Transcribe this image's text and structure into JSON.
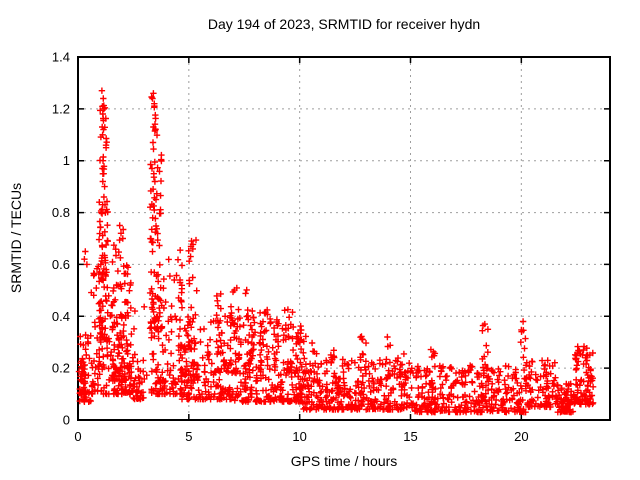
{
  "window": {
    "background": "#ffffff"
  },
  "chart_data": {
    "type": "scatter",
    "title": "Day 194 of 2023, SRMTID for receiver hydn",
    "xlabel": "GPS time / hours",
    "ylabel": "SRMTID / TECUs",
    "xlim": [
      0,
      24
    ],
    "ylim": [
      0,
      1.4
    ],
    "xticks": {
      "values": [
        0,
        5,
        10,
        15,
        20
      ],
      "labels": [
        "0",
        "5",
        "10",
        "15",
        "20"
      ]
    },
    "yticks": {
      "values": [
        0,
        0.2,
        0.4,
        0.6,
        0.8,
        1,
        1.2,
        1.4
      ],
      "labels": [
        "0",
        "0.2",
        "0.4",
        "0.6",
        "0.8",
        "1",
        "1.2",
        "1.4"
      ]
    },
    "grid": {
      "show": true,
      "style": "dotted",
      "color": "#9e9e9e"
    },
    "legend": "none",
    "marker": {
      "symbol": "plus",
      "color": "#ff0000"
    },
    "series_name": "SRMTID",
    "points": [
      [
        1.08,
        1.27
      ],
      [
        1.14,
        1.24
      ],
      [
        1.1,
        1.21
      ],
      [
        1.17,
        1.2
      ],
      [
        1.12,
        1.18
      ],
      [
        1.09,
        1.13
      ],
      [
        1.15,
        1.12
      ],
      [
        1.11,
        1.1
      ],
      [
        1.13,
        1.0
      ],
      [
        1.1,
        0.97
      ],
      [
        1.16,
        0.95
      ],
      [
        1.12,
        0.92
      ],
      [
        1.2,
        0.9
      ],
      [
        1.17,
        0.86
      ],
      [
        1.22,
        0.83
      ],
      [
        1.05,
        0.8
      ],
      [
        3.4,
        1.26
      ],
      [
        3.36,
        1.24
      ],
      [
        3.44,
        1.22
      ],
      [
        3.4,
        1.13
      ],
      [
        3.5,
        1.12
      ],
      [
        3.34,
        0.97
      ],
      [
        3.42,
        0.95
      ],
      [
        3.47,
        0.92
      ],
      [
        3.39,
        0.89
      ],
      [
        3.52,
        0.85
      ],
      [
        3.44,
        0.81
      ],
      [
        3.37,
        0.78
      ],
      [
        0.33,
        0.65
      ],
      [
        0.29,
        0.62
      ],
      [
        0.4,
        0.6
      ],
      [
        5.12,
        0.69
      ],
      [
        5.18,
        0.66
      ],
      [
        5.08,
        0.63
      ],
      [
        1.88,
        0.75
      ],
      [
        1.94,
        0.72
      ],
      [
        2.02,
        0.7
      ],
      [
        18.35,
        0.37
      ],
      [
        20.08,
        0.38
      ],
      [
        13.96,
        0.32
      ],
      [
        12.84,
        0.31
      ],
      [
        23.0,
        0.25
      ],
      [
        22.9,
        0.24
      ]
    ],
    "point_clusters": {
      "description": "Dense scatter regions read from the plot; each cluster is expanded into count pseudo-random points. Values estimated from gridlines.",
      "fields": [
        "x_start",
        "x_end",
        "y_min",
        "y_max",
        "count",
        "low_bias_exponent"
      ],
      "clusters": [
        [
          0.02,
          0.6,
          0.07,
          0.35,
          40,
          2.0
        ],
        [
          0.05,
          0.35,
          0.1,
          0.24,
          25,
          1.5
        ],
        [
          0.6,
          2.4,
          0.1,
          0.6,
          170,
          2.2
        ],
        [
          0.95,
          1.35,
          0.3,
          1.05,
          70,
          1.6
        ],
        [
          1.0,
          1.3,
          1.05,
          1.28,
          12,
          1.0
        ],
        [
          1.55,
          2.25,
          0.15,
          0.76,
          60,
          2.0
        ],
        [
          2.3,
          3.1,
          0.08,
          0.45,
          55,
          2.0
        ],
        [
          3.25,
          3.8,
          0.35,
          1.05,
          65,
          1.6
        ],
        [
          3.3,
          3.6,
          1.05,
          1.26,
          10,
          1.0
        ],
        [
          3.3,
          4.7,
          0.1,
          0.62,
          120,
          2.2
        ],
        [
          4.6,
          5.4,
          0.15,
          0.7,
          60,
          1.8
        ],
        [
          4.6,
          7.0,
          0.08,
          0.4,
          150,
          2.2
        ],
        [
          6.2,
          6.65,
          0.18,
          0.52,
          25,
          1.4
        ],
        [
          6.85,
          7.3,
          0.18,
          0.53,
          30,
          1.4
        ],
        [
          7.55,
          8.0,
          0.18,
          0.52,
          25,
          1.4
        ],
        [
          7.0,
          10.1,
          0.07,
          0.42,
          230,
          2.0
        ],
        [
          8.2,
          8.55,
          0.18,
          0.46,
          18,
          1.4
        ],
        [
          9.3,
          9.65,
          0.18,
          0.44,
          15,
          1.4
        ],
        [
          9.9,
          10.3,
          0.12,
          0.37,
          22,
          1.3
        ],
        [
          10.1,
          15.2,
          0.04,
          0.24,
          330,
          1.9
        ],
        [
          10.55,
          10.8,
          0.15,
          0.3,
          8,
          1.0
        ],
        [
          11.35,
          11.6,
          0.15,
          0.3,
          8,
          1.0
        ],
        [
          12.7,
          13.0,
          0.15,
          0.33,
          10,
          1.0
        ],
        [
          13.85,
          14.1,
          0.15,
          0.34,
          10,
          1.0
        ],
        [
          14.65,
          14.9,
          0.12,
          0.26,
          6,
          1.0
        ],
        [
          15.2,
          20.2,
          0.03,
          0.21,
          330,
          1.9
        ],
        [
          15.85,
          16.15,
          0.14,
          0.3,
          8,
          1.0
        ],
        [
          18.2,
          18.5,
          0.15,
          0.37,
          10,
          1.0
        ],
        [
          19.95,
          20.2,
          0.15,
          0.4,
          8,
          1.0
        ],
        [
          20.2,
          21.6,
          0.05,
          0.23,
          90,
          1.8
        ],
        [
          21.6,
          22.4,
          0.03,
          0.14,
          70,
          1.5
        ],
        [
          22.4,
          23.25,
          0.06,
          0.29,
          90,
          1.6
        ]
      ]
    }
  }
}
